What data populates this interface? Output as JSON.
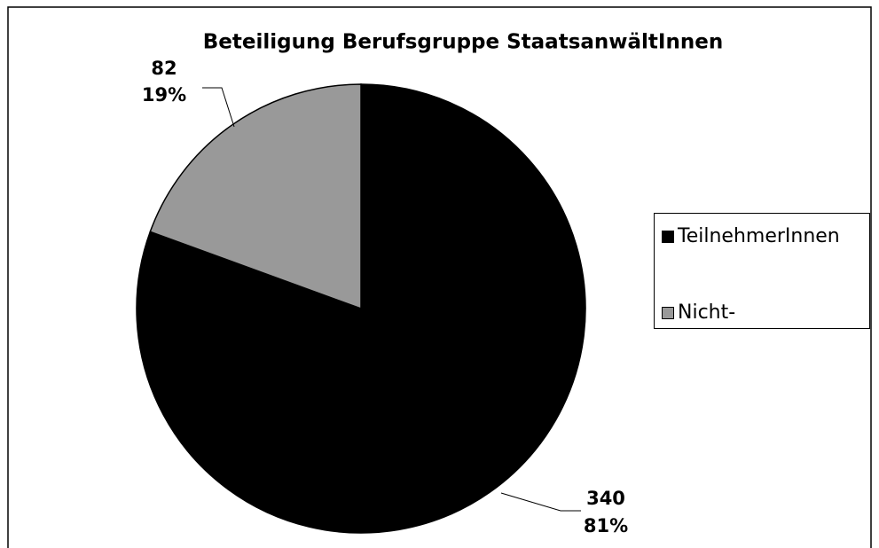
{
  "chart_data": {
    "type": "pie",
    "title": "Beteiligung Berufsgruppe StaatsanwältInnen",
    "categories": [
      "TeilnehmerInnen",
      "Nicht-"
    ],
    "values": [
      340,
      82
    ],
    "percent_labels": [
      "81%",
      "19%"
    ],
    "colors": [
      "#000000",
      "#999999"
    ],
    "legend": "right"
  }
}
